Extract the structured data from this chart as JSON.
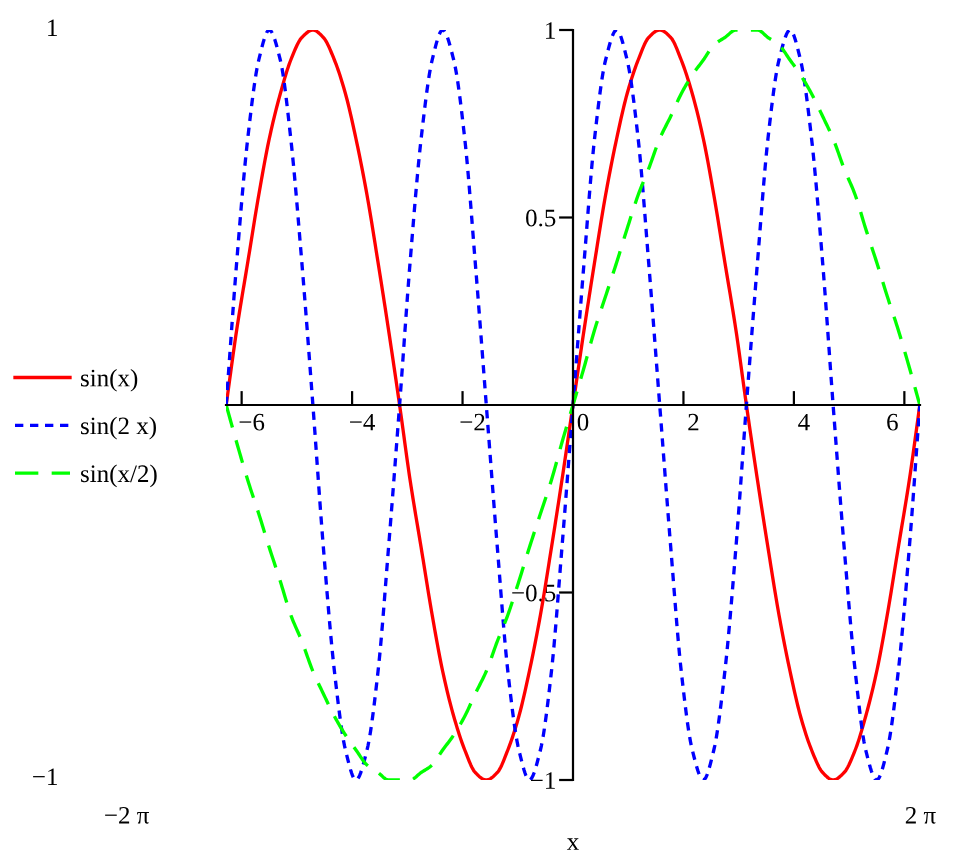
{
  "chart_data": {
    "type": "line",
    "xlabel": "x",
    "x": [
      -6.28,
      -6.09,
      -5.89,
      -5.69,
      -5.5,
      -5.3,
      -5.11,
      -4.91,
      -4.71,
      -4.52,
      -4.32,
      -4.12,
      -3.93,
      -3.73,
      -3.53,
      -3.34,
      -3.14,
      -2.95,
      -2.75,
      -2.55,
      -2.36,
      -2.16,
      -1.96,
      -1.77,
      -1.57,
      -1.37,
      -1.18,
      -0.98,
      -0.79,
      -0.59,
      -0.39,
      -0.2,
      0,
      0.2,
      0.39,
      0.59,
      0.79,
      0.98,
      1.18,
      1.37,
      1.57,
      1.77,
      1.96,
      2.16,
      2.36,
      2.55,
      2.75,
      2.95,
      3.14,
      3.34,
      3.53,
      3.73,
      3.93,
      4.12,
      4.32,
      4.52,
      4.71,
      4.91,
      5.11,
      5.3,
      5.5,
      5.69,
      5.89,
      6.09,
      6.28
    ],
    "series": [
      {
        "name": "sin(x)",
        "color": "#ff0000",
        "line_style": "solid",
        "values": [
          0,
          0.2,
          0.38,
          0.56,
          0.71,
          0.83,
          0.92,
          0.98,
          1,
          0.98,
          0.92,
          0.83,
          0.71,
          0.56,
          0.38,
          0.2,
          0,
          -0.2,
          -0.38,
          -0.56,
          -0.71,
          -0.83,
          -0.92,
          -0.98,
          -1,
          -0.98,
          -0.92,
          -0.83,
          -0.71,
          -0.56,
          -0.38,
          -0.2,
          0,
          0.2,
          0.38,
          0.56,
          0.71,
          0.83,
          0.92,
          0.98,
          1,
          0.98,
          0.92,
          0.83,
          0.71,
          0.56,
          0.38,
          0.2,
          0,
          -0.2,
          -0.38,
          -0.56,
          -0.71,
          -0.83,
          -0.92,
          -0.98,
          -1,
          -0.98,
          -0.92,
          -0.83,
          -0.71,
          -0.56,
          -0.38,
          -0.2,
          0
        ]
      },
      {
        "name": "sin(2 x)",
        "color": "#0000ff",
        "line_style": "dotted",
        "values": [
          0,
          0.38,
          0.71,
          0.92,
          1,
          0.92,
          0.71,
          0.38,
          0,
          -0.38,
          -0.71,
          -0.92,
          -1,
          -0.92,
          -0.71,
          -0.38,
          0,
          0.38,
          0.71,
          0.92,
          1,
          0.92,
          0.71,
          0.38,
          0,
          -0.38,
          -0.71,
          -0.92,
          -1,
          -0.92,
          -0.71,
          -0.38,
          0,
          0.38,
          0.71,
          0.92,
          1,
          0.92,
          0.71,
          0.38,
          0,
          -0.38,
          -0.71,
          -0.92,
          -1,
          -0.92,
          -0.71,
          -0.38,
          0,
          0.38,
          0.71,
          0.92,
          1,
          0.92,
          0.71,
          0.38,
          0,
          -0.38,
          -0.71,
          -0.92,
          -1,
          -0.92,
          -0.71,
          -0.38,
          0
        ]
      },
      {
        "name": "sin(x/2)",
        "color": "#00ff00",
        "line_style": "dashed",
        "values": [
          0,
          -0.1,
          -0.2,
          -0.29,
          -0.38,
          -0.47,
          -0.56,
          -0.63,
          -0.71,
          -0.77,
          -0.83,
          -0.88,
          -0.92,
          -0.96,
          -0.98,
          -1,
          -1,
          -1,
          -0.98,
          -0.96,
          -0.92,
          -0.88,
          -0.83,
          -0.77,
          -0.71,
          -0.63,
          -0.56,
          -0.47,
          -0.38,
          -0.29,
          -0.2,
          -0.1,
          0,
          0.1,
          0.2,
          0.29,
          0.38,
          0.47,
          0.56,
          0.63,
          0.71,
          0.77,
          0.83,
          0.88,
          0.92,
          0.96,
          0.98,
          1,
          1,
          1,
          0.98,
          0.96,
          0.92,
          0.88,
          0.83,
          0.77,
          0.71,
          0.63,
          0.56,
          0.47,
          0.38,
          0.29,
          0.2,
          0.1,
          0
        ]
      }
    ],
    "xlim": [
      -6.2832,
      6.2832
    ],
    "ylim": [
      -1,
      1
    ],
    "xticks": [
      {
        "value": -6,
        "label": "−6"
      },
      {
        "value": -4,
        "label": "−4"
      },
      {
        "value": -2,
        "label": "−2"
      },
      0,
      2,
      4,
      6
    ],
    "yticks": [
      {
        "value": -1,
        "label": "−1"
      },
      {
        "value": -0.5,
        "label": "−0.5"
      },
      0.5,
      1
    ],
    "annotations": [
      "1",
      "−1",
      "−2 π",
      "2 π"
    ],
    "grid": false,
    "legend": "left"
  }
}
